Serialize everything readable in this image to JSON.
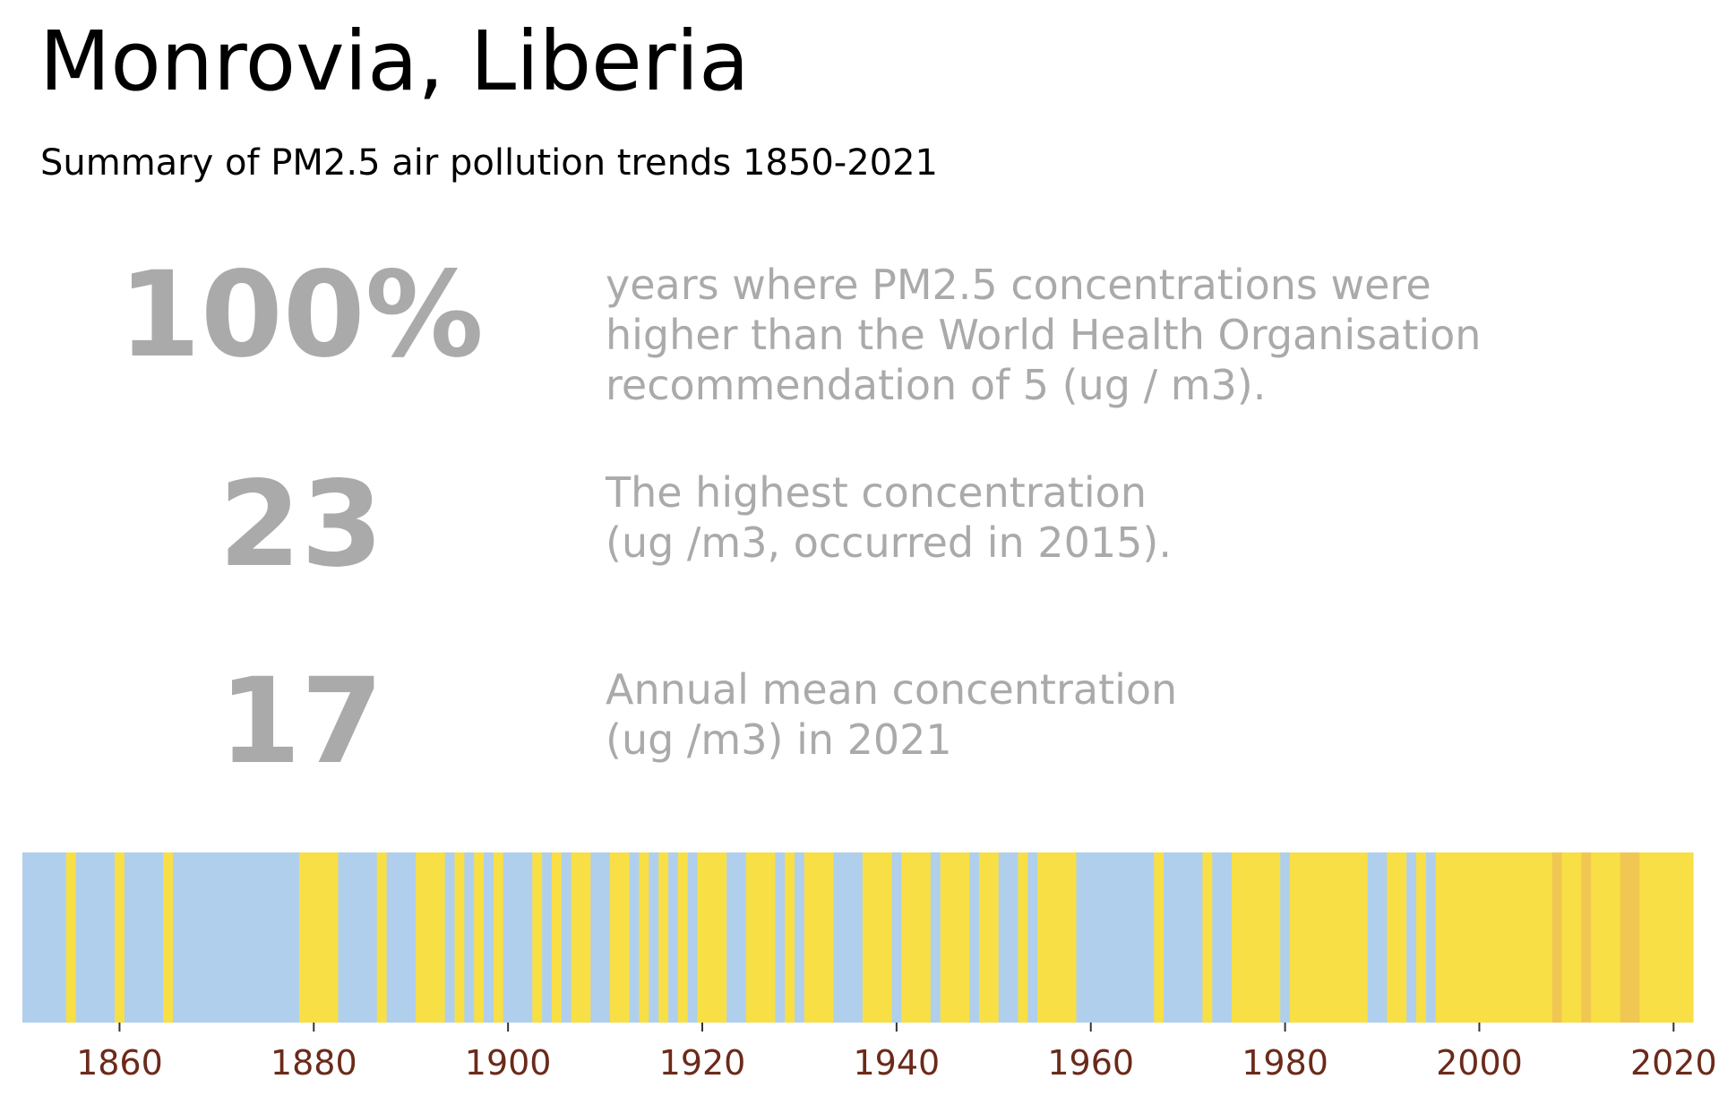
{
  "title": "Monrovia, Liberia",
  "subtitle": "Summary of PM2.5 air pollution trends 1850-2021",
  "stats": [
    {
      "value": "100%",
      "description": "years where PM2.5 concentrations were\nhigher than the World Health Organisation\nrecommendation of 5 (ug / m3)."
    },
    {
      "value": "23",
      "description": "The highest concentration\n(ug /m3, occurred in 2015)."
    },
    {
      "value": "17",
      "description": "Annual mean concentration\n(ug /m3) in 2021"
    }
  ],
  "colors": {
    "below_band": "#b0cfec",
    "mid_band": "#f8df45",
    "high_band": "#f0c752",
    "tick_label": "#6b2a1a",
    "stat_text": "#aaaaaa"
  },
  "chart_data": {
    "type": "heatmap",
    "title": "",
    "xlabel": "",
    "ylabel": "",
    "xlim": [
      1850,
      2022
    ],
    "xticks": [
      1860,
      1880,
      1900,
      1920,
      1940,
      1960,
      1980,
      2000,
      2020
    ],
    "grid": false,
    "legend": "none",
    "bands": [
      {
        "from": 1850,
        "to": 1854.5,
        "category": "below"
      },
      {
        "from": 1854.5,
        "to": 1855.5,
        "category": "mid"
      },
      {
        "from": 1855.5,
        "to": 1859.5,
        "category": "below"
      },
      {
        "from": 1859.5,
        "to": 1860.5,
        "category": "mid"
      },
      {
        "from": 1860.5,
        "to": 1864.5,
        "category": "below"
      },
      {
        "from": 1864.5,
        "to": 1865.5,
        "category": "mid"
      },
      {
        "from": 1865.5,
        "to": 1878.5,
        "category": "below"
      },
      {
        "from": 1878.5,
        "to": 1882.5,
        "category": "mid"
      },
      {
        "from": 1882.5,
        "to": 1886.5,
        "category": "below"
      },
      {
        "from": 1886.5,
        "to": 1887.5,
        "category": "mid"
      },
      {
        "from": 1887.5,
        "to": 1890.5,
        "category": "below"
      },
      {
        "from": 1890.5,
        "to": 1893.5,
        "category": "mid"
      },
      {
        "from": 1893.5,
        "to": 1894.5,
        "category": "below"
      },
      {
        "from": 1894.5,
        "to": 1895.5,
        "category": "mid"
      },
      {
        "from": 1895.5,
        "to": 1896.5,
        "category": "below"
      },
      {
        "from": 1896.5,
        "to": 1897.5,
        "category": "mid"
      },
      {
        "from": 1897.5,
        "to": 1898.5,
        "category": "below"
      },
      {
        "from": 1898.5,
        "to": 1899.5,
        "category": "mid"
      },
      {
        "from": 1899.5,
        "to": 1902.5,
        "category": "below"
      },
      {
        "from": 1902.5,
        "to": 1903.5,
        "category": "mid"
      },
      {
        "from": 1903.5,
        "to": 1904.5,
        "category": "below"
      },
      {
        "from": 1904.5,
        "to": 1905.5,
        "category": "mid"
      },
      {
        "from": 1905.5,
        "to": 1906.5,
        "category": "below"
      },
      {
        "from": 1906.5,
        "to": 1908.5,
        "category": "mid"
      },
      {
        "from": 1908.5,
        "to": 1910.5,
        "category": "below"
      },
      {
        "from": 1910.5,
        "to": 1912.5,
        "category": "mid"
      },
      {
        "from": 1912.5,
        "to": 1913.5,
        "category": "below"
      },
      {
        "from": 1913.5,
        "to": 1914.5,
        "category": "mid"
      },
      {
        "from": 1914.5,
        "to": 1915.5,
        "category": "below"
      },
      {
        "from": 1915.5,
        "to": 1916.5,
        "category": "mid"
      },
      {
        "from": 1916.5,
        "to": 1917.5,
        "category": "below"
      },
      {
        "from": 1917.5,
        "to": 1918.5,
        "category": "mid"
      },
      {
        "from": 1918.5,
        "to": 1919.5,
        "category": "below"
      },
      {
        "from": 1919.5,
        "to": 1922.5,
        "category": "mid"
      },
      {
        "from": 1922.5,
        "to": 1924.5,
        "category": "below"
      },
      {
        "from": 1924.5,
        "to": 1927.5,
        "category": "mid"
      },
      {
        "from": 1927.5,
        "to": 1928.5,
        "category": "below"
      },
      {
        "from": 1928.5,
        "to": 1929.5,
        "category": "mid"
      },
      {
        "from": 1929.5,
        "to": 1930.5,
        "category": "below"
      },
      {
        "from": 1930.5,
        "to": 1933.5,
        "category": "mid"
      },
      {
        "from": 1933.5,
        "to": 1936.5,
        "category": "below"
      },
      {
        "from": 1936.5,
        "to": 1939.5,
        "category": "mid"
      },
      {
        "from": 1939.5,
        "to": 1940.5,
        "category": "below"
      },
      {
        "from": 1940.5,
        "to": 1943.5,
        "category": "mid"
      },
      {
        "from": 1943.5,
        "to": 1944.5,
        "category": "below"
      },
      {
        "from": 1944.5,
        "to": 1947.5,
        "category": "mid"
      },
      {
        "from": 1947.5,
        "to": 1948.5,
        "category": "below"
      },
      {
        "from": 1948.5,
        "to": 1950.5,
        "category": "mid"
      },
      {
        "from": 1950.5,
        "to": 1952.5,
        "category": "below"
      },
      {
        "from": 1952.5,
        "to": 1953.5,
        "category": "mid"
      },
      {
        "from": 1953.5,
        "to": 1954.5,
        "category": "below"
      },
      {
        "from": 1954.5,
        "to": 1958.5,
        "category": "mid"
      },
      {
        "from": 1958.5,
        "to": 1966.5,
        "category": "below"
      },
      {
        "from": 1966.5,
        "to": 1967.5,
        "category": "mid"
      },
      {
        "from": 1967.5,
        "to": 1971.5,
        "category": "below"
      },
      {
        "from": 1971.5,
        "to": 1972.5,
        "category": "mid"
      },
      {
        "from": 1972.5,
        "to": 1974.5,
        "category": "below"
      },
      {
        "from": 1974.5,
        "to": 1979.5,
        "category": "mid"
      },
      {
        "from": 1979.5,
        "to": 1980.5,
        "category": "below"
      },
      {
        "from": 1980.5,
        "to": 1988.5,
        "category": "mid"
      },
      {
        "from": 1988.5,
        "to": 1990.5,
        "category": "below"
      },
      {
        "from": 1990.5,
        "to": 1992.5,
        "category": "mid"
      },
      {
        "from": 1992.5,
        "to": 1993.5,
        "category": "below"
      },
      {
        "from": 1993.5,
        "to": 1994.5,
        "category": "mid"
      },
      {
        "from": 1994.5,
        "to": 1995.5,
        "category": "below"
      },
      {
        "from": 1995.5,
        "to": 2007.5,
        "category": "mid"
      },
      {
        "from": 2007.5,
        "to": 2008.5,
        "category": "high"
      },
      {
        "from": 2008.5,
        "to": 2010.5,
        "category": "mid"
      },
      {
        "from": 2010.5,
        "to": 2011.5,
        "category": "high"
      },
      {
        "from": 2011.5,
        "to": 2014.5,
        "category": "mid"
      },
      {
        "from": 2014.5,
        "to": 2016.5,
        "category": "high"
      },
      {
        "from": 2016.5,
        "to": 2022,
        "category": "mid"
      }
    ]
  }
}
